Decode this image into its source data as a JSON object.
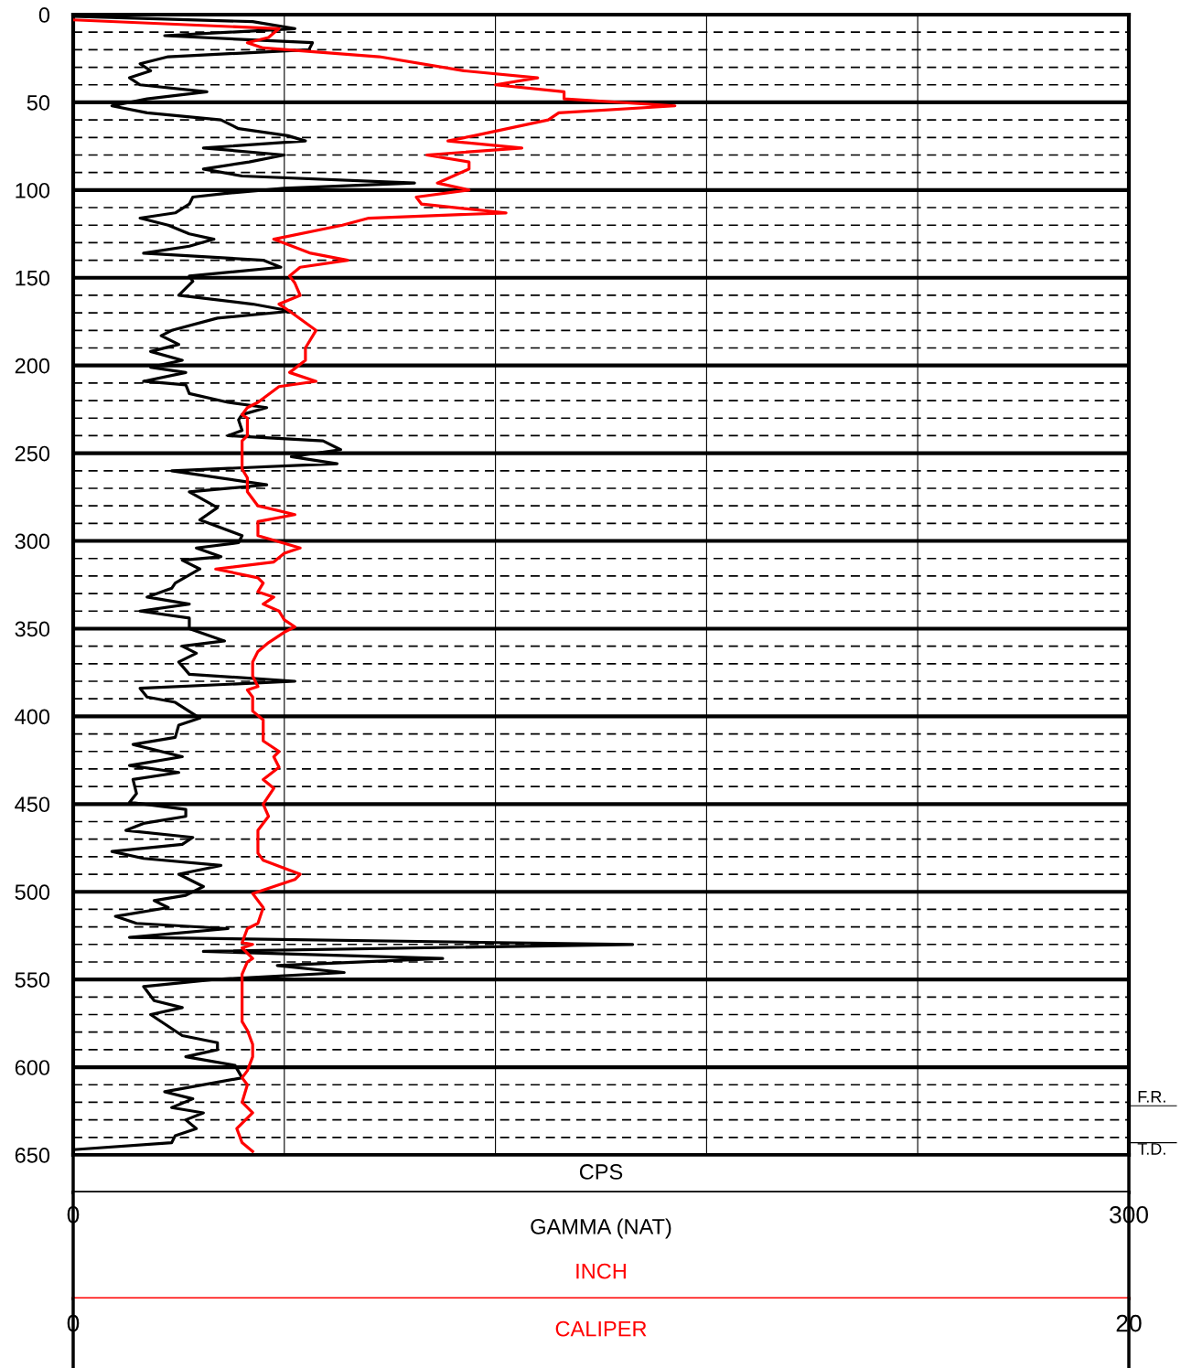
{
  "chart_data": {
    "type": "line",
    "orientation": "horizontal",
    "xlabel": "CPS",
    "x2label": "INCH",
    "legend": "bottom",
    "grid": true,
    "line_style": "solid",
    "marker": "none",
    "ylim": [
      650,
      0
    ],
    "yticks": [
      0,
      {
        "value": 10,
        "label": null
      },
      {
        "value": 20,
        "label": null
      },
      {
        "value": 30,
        "label": null
      },
      {
        "value": 40,
        "label": null
      },
      50,
      {
        "value": 60,
        "label": null
      },
      {
        "value": 70,
        "label": null
      },
      {
        "value": 80,
        "label": null
      },
      {
        "value": 90,
        "label": null
      },
      100,
      {
        "value": 110,
        "label": null
      },
      {
        "value": 120,
        "label": null
      },
      {
        "value": 130,
        "label": null
      },
      {
        "value": 140,
        "label": null
      },
      150,
      {
        "value": 160,
        "label": null
      },
      {
        "value": 170,
        "label": null
      },
      {
        "value": 180,
        "label": null
      },
      {
        "value": 190,
        "label": null
      },
      200,
      {
        "value": 210,
        "label": null
      },
      {
        "value": 220,
        "label": null
      },
      {
        "value": 230,
        "label": null
      },
      {
        "value": 240,
        "label": null
      },
      250,
      {
        "value": 260,
        "label": null
      },
      {
        "value": 270,
        "label": null
      },
      {
        "value": 280,
        "label": null
      },
      {
        "value": 290,
        "label": null
      },
      300,
      {
        "value": 310,
        "label": null
      },
      {
        "value": 320,
        "label": null
      },
      {
        "value": 330,
        "label": null
      },
      {
        "value": 340,
        "label": null
      },
      350,
      {
        "value": 360,
        "label": null
      },
      {
        "value": 370,
        "label": null
      },
      {
        "value": 380,
        "label": null
      },
      {
        "value": 390,
        "label": null
      },
      400,
      {
        "value": 410,
        "label": null
      },
      {
        "value": 420,
        "label": null
      },
      {
        "value": 430,
        "label": null
      },
      {
        "value": 440,
        "label": null
      },
      450,
      {
        "value": 460,
        "label": null
      },
      {
        "value": 470,
        "label": null
      },
      {
        "value": 480,
        "label": null
      },
      {
        "value": 490,
        "label": null
      },
      500,
      {
        "value": 510,
        "label": null
      },
      {
        "value": 520,
        "label": null
      },
      {
        "value": 530,
        "label": null
      },
      {
        "value": 540,
        "label": null
      },
      550,
      {
        "value": 560,
        "label": null
      },
      {
        "value": 570,
        "label": null
      },
      {
        "value": 580,
        "label": null
      },
      {
        "value": 590,
        "label": null
      },
      600,
      {
        "value": 610,
        "label": null
      },
      {
        "value": 620,
        "label": null
      },
      {
        "value": 630,
        "label": null
      },
      {
        "value": 640,
        "label": null
      },
      650
    ],
    "xlim": [
      0,
      300
    ],
    "xticks": [
      0,
      {
        "value": 60,
        "label": null
      },
      {
        "value": 120,
        "label": null
      },
      {
        "value": 180,
        "label": null
      },
      {
        "value": 240,
        "label": null
      },
      300
    ],
    "x2lim": [
      0,
      20
    ],
    "x2ticks": [
      0,
      20
    ],
    "ref_lines": [
      {
        "axis": "y",
        "value": 622,
        "label": "F.R."
      },
      {
        "axis": "y",
        "value": 643,
        "label": "T.D."
      }
    ],
    "series": [
      {
        "name": "GAMMA (NAT)",
        "color": "#000000",
        "x": [
          1,
          4,
          8,
          12,
          16,
          20,
          24,
          28,
          32,
          36,
          40,
          44,
          48,
          52,
          56,
          60,
          65,
          69,
          72,
          76,
          80,
          84,
          88,
          92,
          96,
          99,
          102,
          104,
          108,
          113,
          116,
          120,
          125,
          128,
          132,
          136,
          140,
          144,
          149,
          152,
          160,
          165,
          169,
          173,
          180,
          183,
          188,
          192,
          197,
          201,
          204,
          209,
          211,
          216,
          221,
          224,
          228,
          231,
          237,
          240,
          243,
          248,
          252,
          256,
          260,
          268,
          272,
          281,
          288,
          297,
          301,
          304,
          309,
          311,
          316,
          324,
          327,
          332,
          336,
          340,
          344,
          350,
          357,
          360,
          364,
          369,
          376,
          380,
          384,
          389,
          392,
          401,
          405,
          412,
          416,
          423,
          428,
          432,
          436,
          444,
          449,
          453,
          457,
          461,
          465,
          469,
          473,
          477,
          481,
          485,
          490,
          497,
          502,
          505,
          509,
          514,
          518,
          521,
          526,
          530,
          534,
          538,
          542,
          546,
          550,
          554,
          562,
          566,
          570,
          582,
          586,
          590,
          594,
          599,
          606,
          614,
          618,
          623,
          626,
          630,
          635,
          639,
          643,
          647
        ],
        "values": [
          0,
          51,
          63,
          26,
          68,
          67,
          27,
          19,
          22,
          16,
          19,
          38,
          21,
          11,
          21,
          42,
          47,
          61,
          66,
          37,
          60,
          50,
          37,
          48,
          97,
          60,
          43,
          34,
          33,
          29,
          19,
          27,
          33,
          40,
          33,
          20,
          54,
          59,
          33,
          34,
          30,
          51,
          62,
          41,
          28,
          25,
          30,
          22,
          31,
          22,
          32,
          20,
          32,
          33,
          44,
          55,
          48,
          47,
          48,
          44,
          71,
          76,
          62,
          75,
          28,
          55,
          33,
          41,
          36,
          48,
          47,
          35,
          42,
          31,
          36,
          29,
          28,
          21,
          33,
          19,
          33,
          33,
          43,
          31,
          35,
          30,
          33,
          63,
          19,
          21,
          29,
          36,
          30,
          29,
          17,
          31,
          16,
          30,
          17,
          18,
          16,
          32,
          32,
          20,
          15,
          34,
          31,
          11,
          20,
          42,
          30,
          37,
          32,
          23,
          27,
          12,
          18,
          44,
          16,
          159,
          37,
          105,
          58,
          77,
          40,
          20,
          23,
          31,
          22,
          31,
          41,
          41,
          32,
          46,
          48,
          26,
          34,
          28,
          37,
          32,
          35,
          29,
          28,
          0
        ]
      },
      {
        "name": "CALIPER",
        "color": "#ff0000",
        "axis": "x2",
        "x": [
          3,
          8,
          13,
          16,
          19,
          24,
          32,
          36,
          40,
          44,
          48,
          52,
          56,
          60,
          69,
          72,
          76,
          80,
          84,
          88,
          96,
          100,
          104,
          108,
          113,
          116,
          120,
          128,
          136,
          140,
          144,
          149,
          153,
          160,
          165,
          169,
          180,
          190,
          197,
          204,
          209,
          212,
          221,
          224,
          228,
          230,
          240,
          243,
          259,
          264,
          272,
          280,
          285,
          289,
          297,
          304,
          307,
          312,
          316,
          321,
          324,
          329,
          332,
          336,
          340,
          345,
          349,
          352,
          358,
          363,
          369,
          377,
          383,
          385,
          389,
          397,
          402,
          407,
          414,
          420,
          423,
          429,
          436,
          441,
          450,
          457,
          465,
          478,
          482,
          490,
          493,
          501,
          509,
          518,
          521,
          529,
          530,
          532,
          538,
          540,
          547,
          552,
          574,
          579,
          587,
          594,
          602,
          606,
          610,
          620,
          626,
          635,
          643,
          648
        ],
        "values": [
          0,
          3.9,
          3.7,
          3.3,
          3.6,
          5.8,
          7.4,
          8.8,
          8.0,
          9.3,
          9.3,
          11.4,
          9.2,
          9.0,
          7.6,
          7.1,
          8.5,
          6.7,
          7.5,
          7.5,
          6.9,
          7.5,
          6.5,
          6.6,
          8.2,
          5.6,
          5.1,
          3.8,
          4.5,
          5.2,
          4.3,
          4.1,
          4.2,
          4.3,
          3.9,
          4.1,
          4.6,
          4.4,
          4.4,
          4.1,
          4.6,
          3.9,
          3.5,
          3.3,
          3.2,
          3.3,
          3.3,
          3.2,
          3.2,
          3.3,
          3.3,
          3.5,
          4.2,
          3.5,
          3.5,
          4.3,
          4.0,
          3.8,
          2.7,
          3.5,
          3.6,
          3.5,
          3.8,
          3.6,
          3.9,
          4.0,
          4.2,
          4.0,
          3.7,
          3.5,
          3.4,
          3.4,
          3.5,
          3.3,
          3.4,
          3.4,
          3.6,
          3.6,
          3.6,
          3.9,
          3.8,
          3.9,
          3.6,
          3.8,
          3.6,
          3.7,
          3.5,
          3.5,
          3.6,
          4.3,
          4.2,
          3.4,
          3.6,
          3.5,
          3.3,
          3.2,
          3.4,
          3.2,
          3.4,
          3.3,
          3.2,
          3.2,
          3.2,
          3.3,
          3.4,
          3.4,
          3.3,
          3.2,
          3.3,
          3.2,
          3.4,
          3.1,
          3.2,
          3.4
        ]
      }
    ]
  }
}
